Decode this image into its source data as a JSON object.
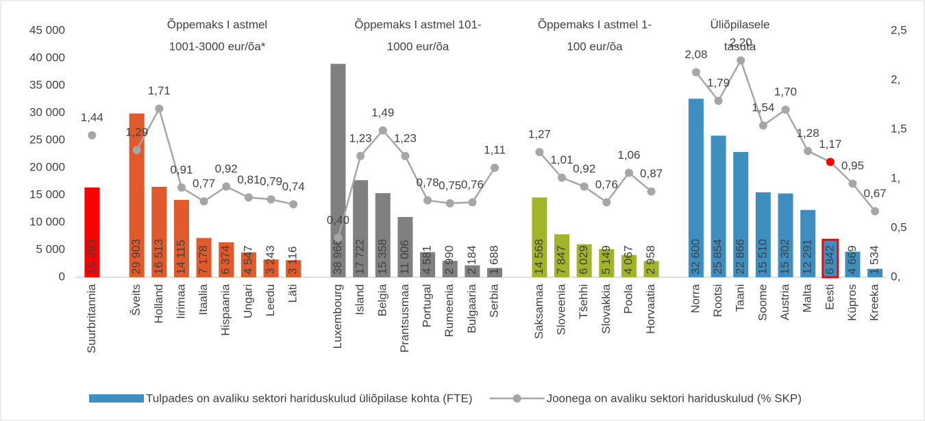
{
  "chart_data": {
    "type": "bar_line",
    "categories": [
      "Suurbritannia",
      null,
      "Šveits",
      "Holland",
      "Iirimaa",
      "Itaalia",
      "Hispaania",
      "Ungari",
      "Leedu",
      "Läti",
      null,
      "Luxembourg",
      "Island",
      "Belgia",
      "Prantsusmaa",
      "Portugal",
      "Rumeenia",
      "Bulgaaria",
      "Serbia",
      null,
      "Saksamaa",
      "Sloveenia",
      "Tšehhi",
      "Slovakkia",
      "Poola",
      "Horvaatia",
      null,
      "Norra",
      "Rootsi",
      "Taani",
      "Soome",
      "Austria",
      "Malta",
      "Eesti",
      "Küpros",
      "Kreeka"
    ],
    "series": [
      {
        "name": "Tulpades on avaliku sektori hariduskulud üliõpilase kohta (FTE)",
        "type": "bar",
        "color": "#3e8ebf",
        "colors": [
          "#ff0000",
          null,
          "#e05a2b",
          "#e05a2b",
          "#e05a2b",
          "#e05a2b",
          "#e05a2b",
          "#e05a2b",
          "#e05a2b",
          "#e05a2b",
          null,
          "#808080",
          "#808080",
          "#808080",
          "#808080",
          "#808080",
          "#808080",
          "#808080",
          "#808080",
          null,
          "#a2b52a",
          "#a2b52a",
          "#a2b52a",
          "#a2b52a",
          "#a2b52a",
          "#a2b52a",
          null,
          "#3e8ebf",
          "#3e8ebf",
          "#3e8ebf",
          "#3e8ebf",
          "#3e8ebf",
          "#3e8ebf",
          "#3e8ebf",
          "#3e8ebf",
          "#3e8ebf"
        ],
        "edge_colors": [
          null,
          null,
          null,
          null,
          null,
          null,
          null,
          null,
          null,
          null,
          null,
          null,
          null,
          null,
          null,
          null,
          null,
          null,
          null,
          null,
          null,
          null,
          null,
          null,
          null,
          null,
          null,
          null,
          null,
          null,
          null,
          null,
          null,
          "#ff0000",
          null,
          null
        ],
        "values": [
          16393,
          null,
          29903,
          16513,
          14115,
          7178,
          6374,
          4547,
          3243,
          3116,
          null,
          38966,
          17722,
          15358,
          11006,
          4581,
          2990,
          2184,
          1688,
          null,
          14568,
          7847,
          6029,
          5149,
          4067,
          2958,
          null,
          32600,
          25854,
          22866,
          15510,
          15302,
          12291,
          6842,
          4669,
          1534
        ],
        "value_labels": [
          "16 393",
          null,
          "29 903",
          "16 513",
          "14 115",
          "7 178",
          "6 374",
          "4 547",
          "3 243",
          "3 116",
          null,
          "38 966",
          "17 722",
          "15 358",
          "11 006",
          "4 581",
          "2 990",
          "2 184",
          "1 688",
          null,
          "14 568",
          "7 847",
          "6 029",
          "5 149",
          "4 067",
          "2 958",
          null,
          "32 600",
          "25 854",
          "22 866",
          "15 510",
          "15 302",
          "12 291",
          "6 842",
          "4 669",
          "1 534"
        ]
      },
      {
        "name": "Joonega on avaliku sektori hariduskulud (% SKP)",
        "type": "line",
        "axis": "y2",
        "color": "#a6a6a6",
        "marker_colors": [
          "#a6a6a6",
          null,
          "#a6a6a6",
          "#a6a6a6",
          "#a6a6a6",
          "#a6a6a6",
          "#a6a6a6",
          "#a6a6a6",
          "#a6a6a6",
          "#a6a6a6",
          null,
          "#a6a6a6",
          "#a6a6a6",
          "#a6a6a6",
          "#a6a6a6",
          "#a6a6a6",
          "#a6a6a6",
          "#a6a6a6",
          "#a6a6a6",
          null,
          "#a6a6a6",
          "#a6a6a6",
          "#a6a6a6",
          "#a6a6a6",
          "#a6a6a6",
          "#a6a6a6",
          null,
          "#a6a6a6",
          "#a6a6a6",
          "#a6a6a6",
          "#a6a6a6",
          "#a6a6a6",
          "#a6a6a6",
          "#ff0000",
          "#a6a6a6",
          "#a6a6a6"
        ],
        "values": [
          1.44,
          null,
          1.29,
          1.71,
          0.91,
          0.77,
          0.92,
          0.81,
          0.79,
          0.74,
          null,
          0.4,
          1.23,
          1.49,
          1.23,
          0.78,
          0.75,
          0.76,
          1.11,
          null,
          1.27,
          1.01,
          0.92,
          0.76,
          1.06,
          0.87,
          null,
          2.08,
          1.79,
          2.2,
          1.54,
          1.7,
          1.28,
          1.17,
          0.95,
          0.67
        ],
        "value_labels": [
          "1,44",
          null,
          "1,29",
          "1,71",
          "0,91",
          "0,77",
          "0,92",
          "0,81",
          "0,79",
          "0,74",
          null,
          "0,40",
          "1,23",
          "1,49",
          "1,23",
          "0,78",
          "0,75",
          "0,76",
          "1,11",
          null,
          "1,27",
          "1,01",
          "0,92",
          "0,76",
          "1,06",
          "0,87",
          null,
          "2,08",
          "1,79",
          "2,20",
          "1,54",
          "1,70",
          "1,28",
          "1,17",
          "0,95",
          "0,67"
        ]
      }
    ],
    "annotations": [
      {
        "lines": [
          "Õppemaks I astmel",
          "1001-3000 eur/õa*"
        ]
      },
      {
        "lines": [
          "Õppemaks I astmel 101-",
          "1000 eur/õa"
        ]
      },
      {
        "lines": [
          "Õppemaks I astmel 1-",
          "100 eur/õa"
        ]
      },
      {
        "lines": [
          "Üliõpilasele",
          "tasuta"
        ]
      }
    ],
    "ylim": [
      0,
      45000
    ],
    "yticks": [
      {
        "value": 0,
        "label": "0"
      },
      {
        "value": 5000,
        "label": "5 000"
      },
      {
        "value": 10000,
        "label": "10 000"
      },
      {
        "value": 15000,
        "label": "15 000"
      },
      {
        "value": 20000,
        "label": "20 000"
      },
      {
        "value": 25000,
        "label": "25 000"
      },
      {
        "value": 30000,
        "label": "30 000"
      },
      {
        "value": 35000,
        "label": "35 000"
      },
      {
        "value": 40000,
        "label": "40 000"
      },
      {
        "value": 45000,
        "label": "45 000"
      }
    ],
    "y2lim": [
      0,
      2.5
    ],
    "y2ticks": [
      {
        "value": 0,
        "label": "0,"
      },
      {
        "value": 0.5,
        "label": "0,5"
      },
      {
        "value": 1,
        "label": "1,"
      },
      {
        "value": 1.5,
        "label": "1,5"
      },
      {
        "value": 2,
        "label": "2,"
      },
      {
        "value": 2.5,
        "label": "2,5"
      }
    ],
    "legend": "bottom",
    "grid": false
  }
}
